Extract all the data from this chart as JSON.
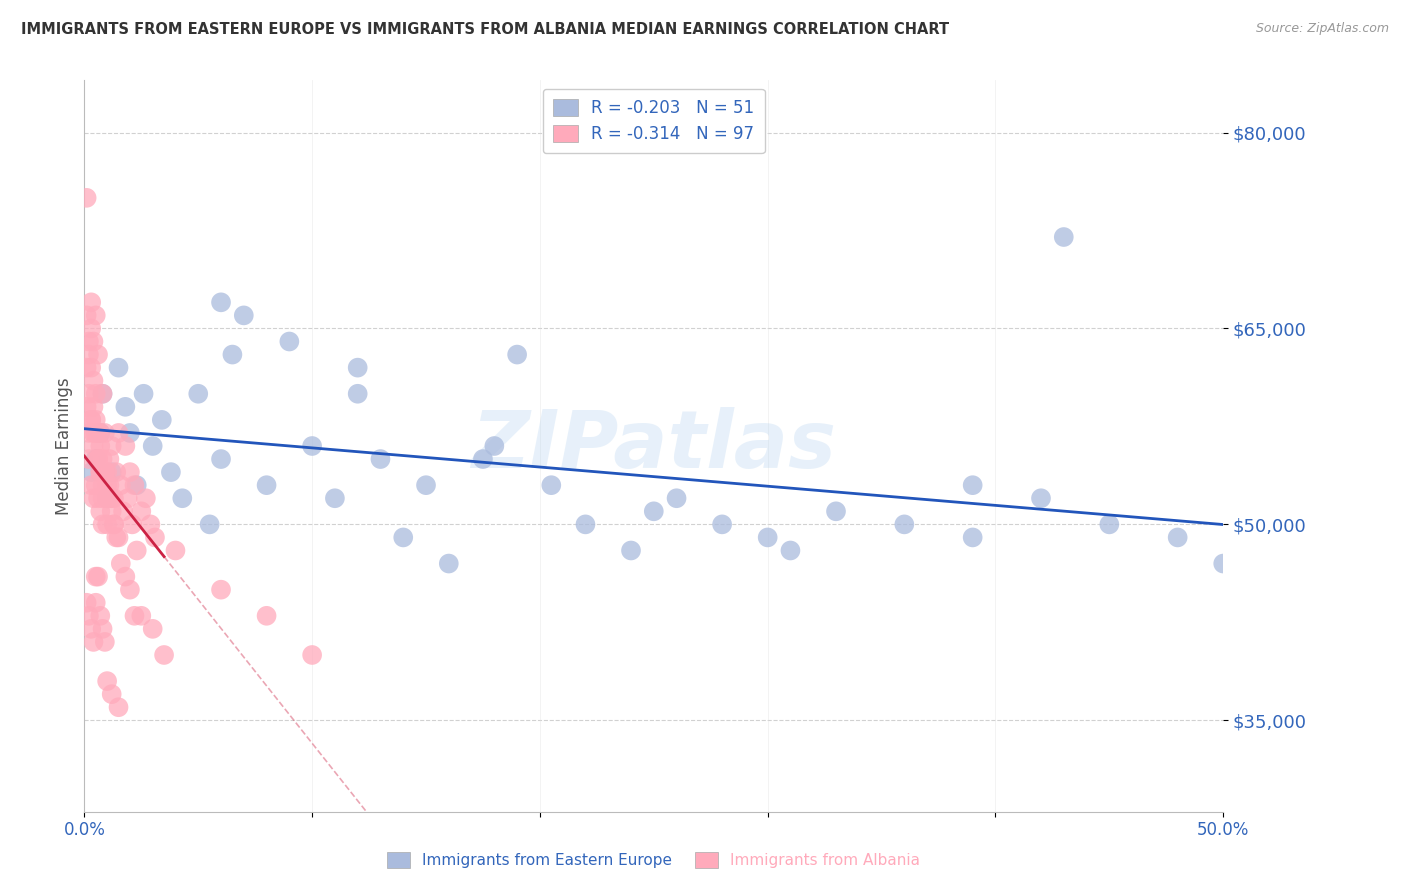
{
  "title": "IMMIGRANTS FROM EASTERN EUROPE VS IMMIGRANTS FROM ALBANIA MEDIAN EARNINGS CORRELATION CHART",
  "source": "Source: ZipAtlas.com",
  "ylabel": "Median Earnings",
  "yticks": [
    35000,
    50000,
    65000,
    80000
  ],
  "ytick_labels": [
    "$35,000",
    "$50,000",
    "$65,000",
    "$80,000"
  ],
  "legend_ee": "Immigrants from Eastern Europe",
  "legend_al": "Immigrants from Albania",
  "R_ee": -0.203,
  "N_ee": 51,
  "R_al": -0.314,
  "N_al": 97,
  "watermark": "ZIPatlas",
  "blue_scatter": "#AABBDD",
  "pink_scatter": "#FFAABB",
  "trend_blue": "#2255BB",
  "trend_pink": "#CC2244",
  "background": "#FFFFFF",
  "grid_color": "#CCCCCC",
  "title_color": "#333333",
  "source_color": "#999999",
  "tick_color": "#3366BB",
  "xlim": [
    0.0,
    0.5
  ],
  "ylim": [
    28000,
    84000
  ],
  "ee_x": [
    0.003,
    0.005,
    0.007,
    0.008,
    0.01,
    0.012,
    0.015,
    0.018,
    0.02,
    0.023,
    0.026,
    0.03,
    0.034,
    0.038,
    0.043,
    0.05,
    0.055,
    0.06,
    0.065,
    0.07,
    0.08,
    0.09,
    0.1,
    0.11,
    0.12,
    0.13,
    0.14,
    0.15,
    0.16,
    0.175,
    0.19,
    0.205,
    0.22,
    0.24,
    0.26,
    0.28,
    0.3,
    0.33,
    0.36,
    0.39,
    0.42,
    0.45,
    0.48,
    0.5,
    0.39,
    0.43,
    0.06,
    0.12,
    0.18,
    0.25,
    0.31
  ],
  "ee_y": [
    54000,
    55000,
    57000,
    60000,
    52000,
    54000,
    62000,
    59000,
    57000,
    53000,
    60000,
    56000,
    58000,
    54000,
    52000,
    60000,
    50000,
    55000,
    63000,
    66000,
    53000,
    64000,
    56000,
    52000,
    60000,
    55000,
    49000,
    53000,
    47000,
    55000,
    63000,
    53000,
    50000,
    48000,
    52000,
    50000,
    49000,
    51000,
    50000,
    49000,
    52000,
    50000,
    49000,
    47000,
    53000,
    72000,
    67000,
    62000,
    56000,
    51000,
    48000
  ],
  "al_x": [
    0.001,
    0.001,
    0.001,
    0.002,
    0.002,
    0.002,
    0.003,
    0.003,
    0.003,
    0.003,
    0.004,
    0.004,
    0.004,
    0.004,
    0.005,
    0.005,
    0.005,
    0.006,
    0.006,
    0.006,
    0.007,
    0.007,
    0.007,
    0.008,
    0.008,
    0.008,
    0.009,
    0.009,
    0.01,
    0.01,
    0.011,
    0.011,
    0.012,
    0.012,
    0.013,
    0.013,
    0.014,
    0.015,
    0.016,
    0.017,
    0.018,
    0.019,
    0.02,
    0.021,
    0.022,
    0.023,
    0.025,
    0.027,
    0.029,
    0.031,
    0.001,
    0.002,
    0.002,
    0.003,
    0.003,
    0.004,
    0.004,
    0.005,
    0.005,
    0.006,
    0.006,
    0.007,
    0.007,
    0.008,
    0.008,
    0.009,
    0.01,
    0.01,
    0.011,
    0.012,
    0.013,
    0.014,
    0.015,
    0.016,
    0.018,
    0.02,
    0.022,
    0.025,
    0.03,
    0.035,
    0.001,
    0.002,
    0.003,
    0.004,
    0.005,
    0.005,
    0.006,
    0.007,
    0.008,
    0.009,
    0.01,
    0.012,
    0.015,
    0.04,
    0.06,
    0.08,
    0.1
  ],
  "al_y": [
    75000,
    66000,
    62000,
    64000,
    63000,
    60000,
    67000,
    65000,
    62000,
    58000,
    64000,
    61000,
    59000,
    57000,
    66000,
    60000,
    58000,
    63000,
    57000,
    55000,
    57000,
    56000,
    54000,
    60000,
    55000,
    53000,
    57000,
    54000,
    54000,
    53000,
    55000,
    52000,
    56000,
    52000,
    52000,
    50000,
    54000,
    57000,
    53000,
    51000,
    56000,
    52000,
    54000,
    50000,
    53000,
    48000,
    51000,
    52000,
    50000,
    49000,
    59000,
    57000,
    55000,
    58000,
    53000,
    56000,
    52000,
    57000,
    53000,
    55000,
    52000,
    54000,
    51000,
    52000,
    50000,
    54000,
    52000,
    50000,
    53000,
    51000,
    50000,
    49000,
    49000,
    47000,
    46000,
    45000,
    43000,
    43000,
    42000,
    40000,
    44000,
    43000,
    42000,
    41000,
    46000,
    44000,
    46000,
    43000,
    42000,
    41000,
    38000,
    37000,
    36000,
    48000,
    45000,
    43000,
    40000
  ]
}
